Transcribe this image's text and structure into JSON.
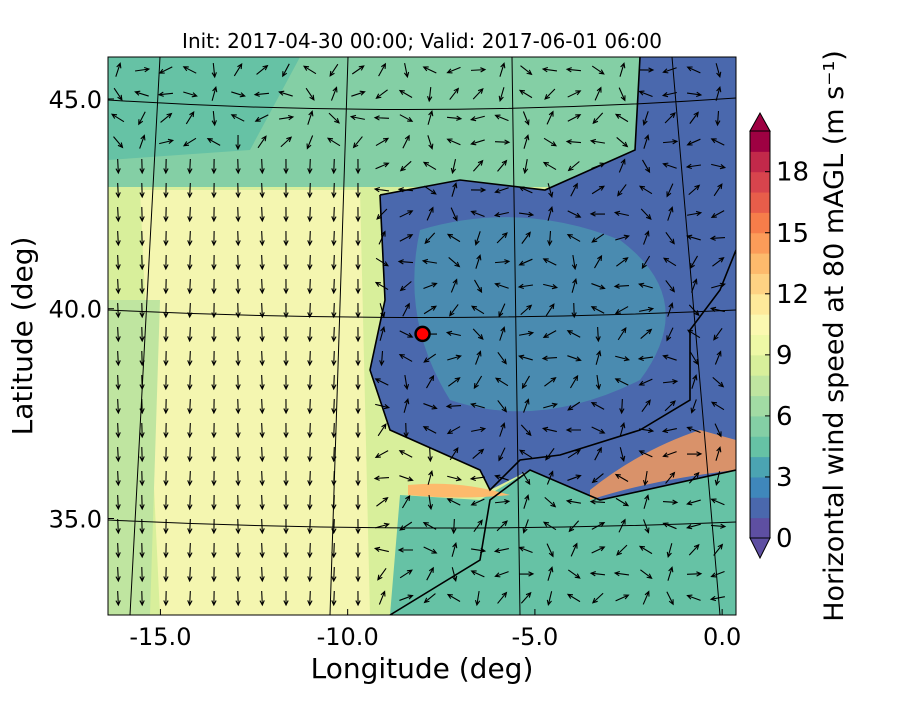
{
  "chart_data": {
    "type": "map",
    "title": "Init: 2017-04-30 00:00; Valid: 2017-06-01 06:00",
    "xlabel": "Longitude (deg)",
    "ylabel": "Latitude (deg)",
    "xlim": [
      -16.4,
      0.37
    ],
    "ylim": [
      32.7,
      46.0
    ],
    "xticks": [
      {
        "value": -15,
        "label": "-15.0"
      },
      {
        "value": -10,
        "label": "-10.0"
      },
      {
        "value": -5,
        "label": "-5.0"
      },
      {
        "value": 0,
        "label": "0.0"
      }
    ],
    "yticks": [
      {
        "value": 35,
        "label": "35.0"
      },
      {
        "value": 40,
        "label": "40.0"
      },
      {
        "value": 45,
        "label": "45.0"
      }
    ],
    "marker": {
      "lon": -8.0,
      "lat": 39.4,
      "color": "#ff0000"
    },
    "colorbar": {
      "label": "Horizontal wind speed at 80 mAGL (m s⁻¹)",
      "vlim": [
        0,
        20
      ],
      "ticks": [
        0,
        3,
        6,
        9,
        12,
        15,
        18
      ],
      "colors": [
        "#5e4fa2",
        "#4a68ad",
        "#3f87bb",
        "#4ba4b2",
        "#66c2a5",
        "#84cfa5",
        "#a2dba4",
        "#bfe5a0",
        "#d8ef9b",
        "#eef8a6",
        "#fbf8b0",
        "#fee99a",
        "#fed283",
        "#fdba6c",
        "#fc9c59",
        "#f67d4a",
        "#e85d4a",
        "#d8444d",
        "#c2294a",
        "#9e0142"
      ]
    }
  }
}
